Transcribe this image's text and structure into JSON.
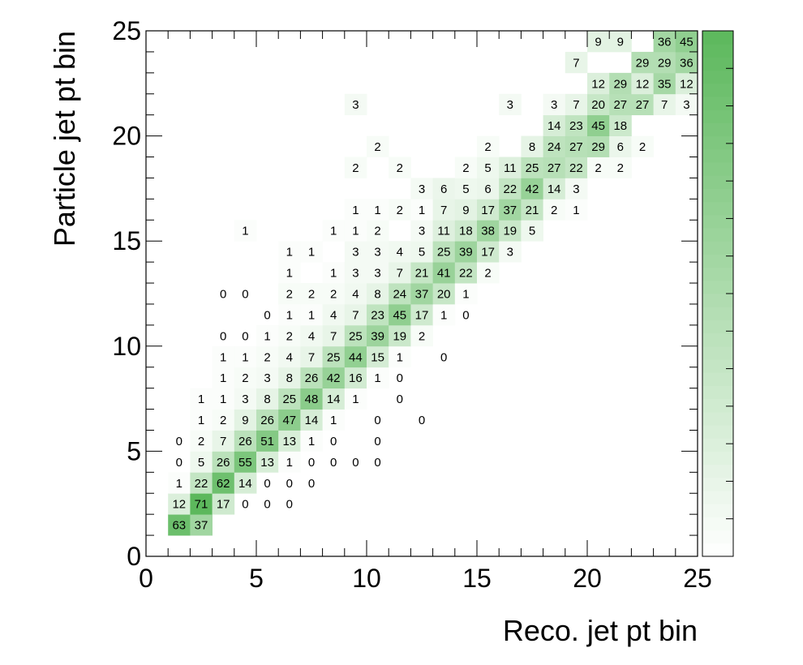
{
  "chart_data": {
    "type": "heatmap",
    "title": "",
    "xlabel": "Reco. jet pt bin",
    "ylabel": "Particle jet pt bin",
    "xlim": [
      0,
      25
    ],
    "ylim": [
      0,
      25
    ],
    "x_ticks": [
      0,
      5,
      10,
      15,
      20,
      25
    ],
    "y_ticks": [
      0,
      5,
      10,
      15,
      20,
      25
    ],
    "value_max": 71,
    "colors": {
      "low": "#ffffff",
      "high": "#5cb85c",
      "axis": "#000000"
    },
    "colorbar": true,
    "cells": [
      [
        1,
        1,
        63
      ],
      [
        2,
        1,
        37
      ],
      [
        1,
        2,
        12
      ],
      [
        2,
        2,
        71
      ],
      [
        3,
        2,
        17
      ],
      [
        4,
        2,
        0
      ],
      [
        5,
        2,
        0
      ],
      [
        6,
        2,
        0
      ],
      [
        1,
        3,
        1
      ],
      [
        2,
        3,
        22
      ],
      [
        3,
        3,
        62
      ],
      [
        4,
        3,
        14
      ],
      [
        5,
        3,
        0
      ],
      [
        6,
        3,
        0
      ],
      [
        7,
        3,
        0
      ],
      [
        1,
        4,
        0
      ],
      [
        2,
        4,
        5
      ],
      [
        3,
        4,
        26
      ],
      [
        4,
        4,
        55
      ],
      [
        5,
        4,
        13
      ],
      [
        6,
        4,
        1
      ],
      [
        7,
        4,
        0
      ],
      [
        8,
        4,
        0
      ],
      [
        9,
        4,
        0
      ],
      [
        10,
        4,
        0
      ],
      [
        1,
        5,
        0
      ],
      [
        2,
        5,
        2
      ],
      [
        3,
        5,
        7
      ],
      [
        4,
        5,
        26
      ],
      [
        5,
        5,
        51
      ],
      [
        6,
        5,
        13
      ],
      [
        7,
        5,
        1
      ],
      [
        8,
        5,
        0
      ],
      [
        10,
        5,
        0
      ],
      [
        2,
        6,
        1
      ],
      [
        3,
        6,
        2
      ],
      [
        4,
        6,
        9
      ],
      [
        5,
        6,
        26
      ],
      [
        6,
        6,
        47
      ],
      [
        7,
        6,
        14
      ],
      [
        8,
        6,
        1
      ],
      [
        10,
        6,
        0
      ],
      [
        12,
        6,
        0
      ],
      [
        2,
        7,
        1
      ],
      [
        3,
        7,
        1
      ],
      [
        4,
        7,
        3
      ],
      [
        5,
        7,
        8
      ],
      [
        6,
        7,
        25
      ],
      [
        7,
        7,
        48
      ],
      [
        8,
        7,
        14
      ],
      [
        9,
        7,
        1
      ],
      [
        11,
        7,
        0
      ],
      [
        3,
        8,
        1
      ],
      [
        4,
        8,
        2
      ],
      [
        5,
        8,
        3
      ],
      [
        6,
        8,
        8
      ],
      [
        7,
        8,
        26
      ],
      [
        8,
        8,
        42
      ],
      [
        9,
        8,
        16
      ],
      [
        10,
        8,
        1
      ],
      [
        11,
        8,
        0
      ],
      [
        3,
        9,
        1
      ],
      [
        4,
        9,
        1
      ],
      [
        5,
        9,
        2
      ],
      [
        6,
        9,
        4
      ],
      [
        7,
        9,
        7
      ],
      [
        8,
        9,
        25
      ],
      [
        9,
        9,
        44
      ],
      [
        10,
        9,
        15
      ],
      [
        11,
        9,
        1
      ],
      [
        13,
        9,
        0
      ],
      [
        3,
        10,
        0
      ],
      [
        4,
        10,
        0
      ],
      [
        5,
        10,
        1
      ],
      [
        6,
        10,
        2
      ],
      [
        7,
        10,
        4
      ],
      [
        8,
        10,
        7
      ],
      [
        9,
        10,
        25
      ],
      [
        10,
        10,
        39
      ],
      [
        11,
        10,
        19
      ],
      [
        12,
        10,
        2
      ],
      [
        5,
        11,
        0
      ],
      [
        6,
        11,
        1
      ],
      [
        7,
        11,
        1
      ],
      [
        8,
        11,
        4
      ],
      [
        9,
        11,
        7
      ],
      [
        10,
        11,
        23
      ],
      [
        11,
        11,
        45
      ],
      [
        12,
        11,
        17
      ],
      [
        13,
        11,
        1
      ],
      [
        14,
        11,
        0
      ],
      [
        3,
        12,
        0
      ],
      [
        4,
        12,
        0
      ],
      [
        6,
        12,
        2
      ],
      [
        7,
        12,
        2
      ],
      [
        8,
        12,
        2
      ],
      [
        9,
        12,
        4
      ],
      [
        10,
        12,
        8
      ],
      [
        11,
        12,
        24
      ],
      [
        12,
        12,
        37
      ],
      [
        13,
        12,
        20
      ],
      [
        14,
        12,
        1
      ],
      [
        6,
        13,
        1
      ],
      [
        8,
        13,
        1
      ],
      [
        9,
        13,
        3
      ],
      [
        10,
        13,
        3
      ],
      [
        11,
        13,
        7
      ],
      [
        12,
        13,
        21
      ],
      [
        13,
        13,
        41
      ],
      [
        14,
        13,
        22
      ],
      [
        15,
        13,
        2
      ],
      [
        6,
        14,
        1
      ],
      [
        7,
        14,
        1
      ],
      [
        9,
        14,
        3
      ],
      [
        10,
        14,
        3
      ],
      [
        11,
        14,
        4
      ],
      [
        12,
        14,
        5
      ],
      [
        13,
        14,
        25
      ],
      [
        14,
        14,
        39
      ],
      [
        15,
        14,
        17
      ],
      [
        16,
        14,
        3
      ],
      [
        4,
        15,
        1
      ],
      [
        8,
        15,
        1
      ],
      [
        9,
        15,
        1
      ],
      [
        10,
        15,
        2
      ],
      [
        12,
        15,
        3
      ],
      [
        13,
        15,
        11
      ],
      [
        14,
        15,
        18
      ],
      [
        15,
        15,
        38
      ],
      [
        16,
        15,
        19
      ],
      [
        17,
        15,
        5
      ],
      [
        9,
        16,
        1
      ],
      [
        10,
        16,
        1
      ],
      [
        11,
        16,
        2
      ],
      [
        12,
        16,
        1
      ],
      [
        13,
        16,
        7
      ],
      [
        14,
        16,
        9
      ],
      [
        15,
        16,
        17
      ],
      [
        16,
        16,
        37
      ],
      [
        17,
        16,
        21
      ],
      [
        18,
        16,
        2
      ],
      [
        19,
        16,
        1
      ],
      [
        12,
        17,
        3
      ],
      [
        13,
        17,
        6
      ],
      [
        14,
        17,
        5
      ],
      [
        15,
        17,
        6
      ],
      [
        16,
        17,
        22
      ],
      [
        17,
        17,
        42
      ],
      [
        18,
        17,
        14
      ],
      [
        19,
        17,
        3
      ],
      [
        9,
        18,
        2
      ],
      [
        11,
        18,
        2
      ],
      [
        14,
        18,
        2
      ],
      [
        15,
        18,
        5
      ],
      [
        16,
        18,
        11
      ],
      [
        17,
        18,
        25
      ],
      [
        18,
        18,
        27
      ],
      [
        19,
        18,
        22
      ],
      [
        20,
        18,
        2
      ],
      [
        21,
        18,
        2
      ],
      [
        10,
        19,
        2
      ],
      [
        15,
        19,
        2
      ],
      [
        17,
        19,
        8
      ],
      [
        18,
        19,
        24
      ],
      [
        19,
        19,
        27
      ],
      [
        20,
        19,
        29
      ],
      [
        21,
        19,
        6
      ],
      [
        22,
        19,
        2
      ],
      [
        18,
        20,
        14
      ],
      [
        19,
        20,
        23
      ],
      [
        20,
        20,
        45
      ],
      [
        21,
        20,
        18
      ],
      [
        9,
        21,
        3
      ],
      [
        16,
        21,
        3
      ],
      [
        18,
        21,
        3
      ],
      [
        19,
        21,
        7
      ],
      [
        20,
        21,
        20
      ],
      [
        21,
        21,
        27
      ],
      [
        22,
        21,
        27
      ],
      [
        23,
        21,
        7
      ],
      [
        24,
        21,
        3
      ],
      [
        20,
        22,
        12
      ],
      [
        21,
        22,
        29
      ],
      [
        22,
        22,
        12
      ],
      [
        23,
        22,
        35
      ],
      [
        24,
        22,
        12
      ],
      [
        19,
        23,
        7
      ],
      [
        22,
        23,
        29
      ],
      [
        23,
        23,
        29
      ],
      [
        24,
        23,
        36
      ],
      [
        20,
        24,
        9
      ],
      [
        21,
        24,
        9
      ],
      [
        23,
        24,
        36
      ],
      [
        24,
        24,
        45
      ]
    ]
  }
}
